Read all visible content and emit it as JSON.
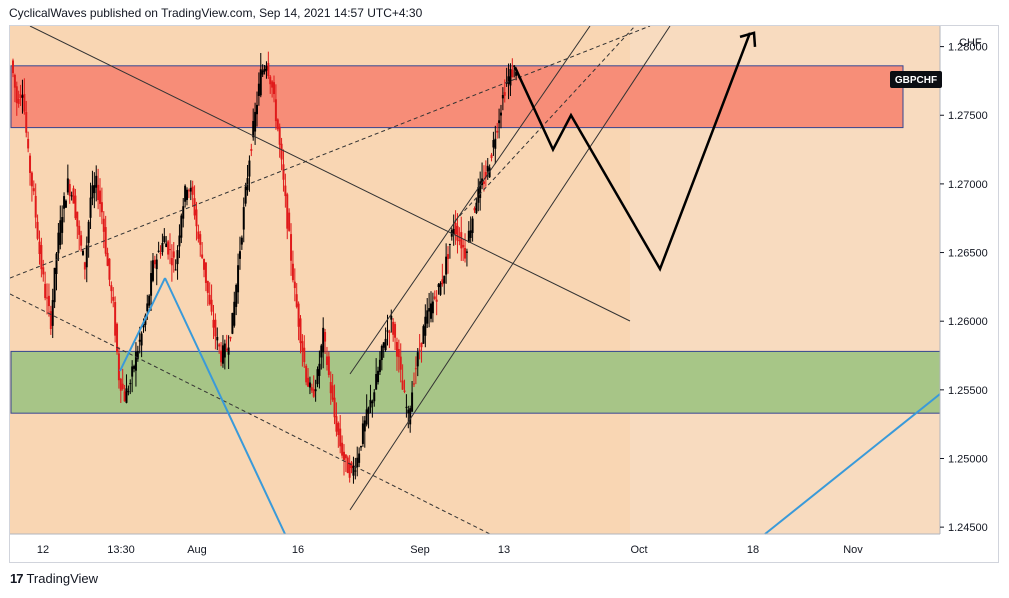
{
  "header": {
    "text": "CyclicalWaves published on TradingView.com, Sep 14, 2021 14:57 UTC+4:30"
  },
  "footer": {
    "brand": "TradingView",
    "logo_icon": "tradingview-logo-icon"
  },
  "chart_data": {
    "type": "candlestick",
    "symbol": "GBPCHF",
    "currency": "CHF",
    "last_price_label": "GBPCHF",
    "y_ticks": [
      "1.28000",
      "1.27500",
      "1.27000",
      "1.26500",
      "1.26000",
      "1.25500",
      "1.25000",
      "1.24500"
    ],
    "y_tick_values": [
      1.28,
      1.275,
      1.27,
      1.265,
      1.26,
      1.255,
      1.25,
      1.245
    ],
    "ylim": [
      1.2445,
      1.2815
    ],
    "x_ticks": [
      "12",
      "13:30",
      "Aug",
      "16",
      "Sep",
      "13",
      "Oct",
      "18",
      "Nov"
    ],
    "zones": [
      {
        "name": "resistance",
        "from": 1.2741,
        "to": 1.2786,
        "color": "#f78a75"
      },
      {
        "name": "support",
        "from": 1.2533,
        "to": 1.2578,
        "color": "#a3c585"
      }
    ],
    "colors": {
      "background": "#f9d6b3",
      "up": "#000000",
      "down": "#e01b1b",
      "projection": "#000000",
      "trendline": "#3a9ad9"
    },
    "price_path": [
      1.279,
      1.276,
      1.277,
      1.272,
      1.269,
      1.265,
      1.262,
      1.26,
      1.265,
      1.268,
      1.27,
      1.269,
      1.266,
      1.264,
      1.269,
      1.27,
      1.268,
      1.264,
      1.261,
      1.256,
      1.2545,
      1.2555,
      1.2575,
      1.259,
      1.261,
      1.264,
      1.265,
      1.266,
      1.265,
      1.264,
      1.268,
      1.27,
      1.269,
      1.266,
      1.264,
      1.261,
      1.259,
      1.2575,
      1.258,
      1.26,
      1.264,
      1.268,
      1.272,
      1.275,
      1.278,
      1.279,
      1.277,
      1.274,
      1.27,
      1.266,
      1.262,
      1.259,
      1.256,
      1.2545,
      1.256,
      1.259,
      1.256,
      1.253,
      1.251,
      1.2495,
      1.249,
      1.25,
      1.252,
      1.2535,
      1.255,
      1.257,
      1.259,
      1.26,
      1.258,
      1.255,
      1.253,
      1.256,
      1.258,
      1.26,
      1.261,
      1.262,
      1.263,
      1.265,
      1.267,
      1.266,
      1.265,
      1.267,
      1.269,
      1.27,
      1.271,
      1.273,
      1.275,
      1.277,
      1.278,
      1.2785
    ],
    "projection_path": [
      1.2785,
      1.2725,
      1.275,
      1.2638,
      1.281
    ],
    "title": "",
    "xlabel": "",
    "ylabel": ""
  }
}
